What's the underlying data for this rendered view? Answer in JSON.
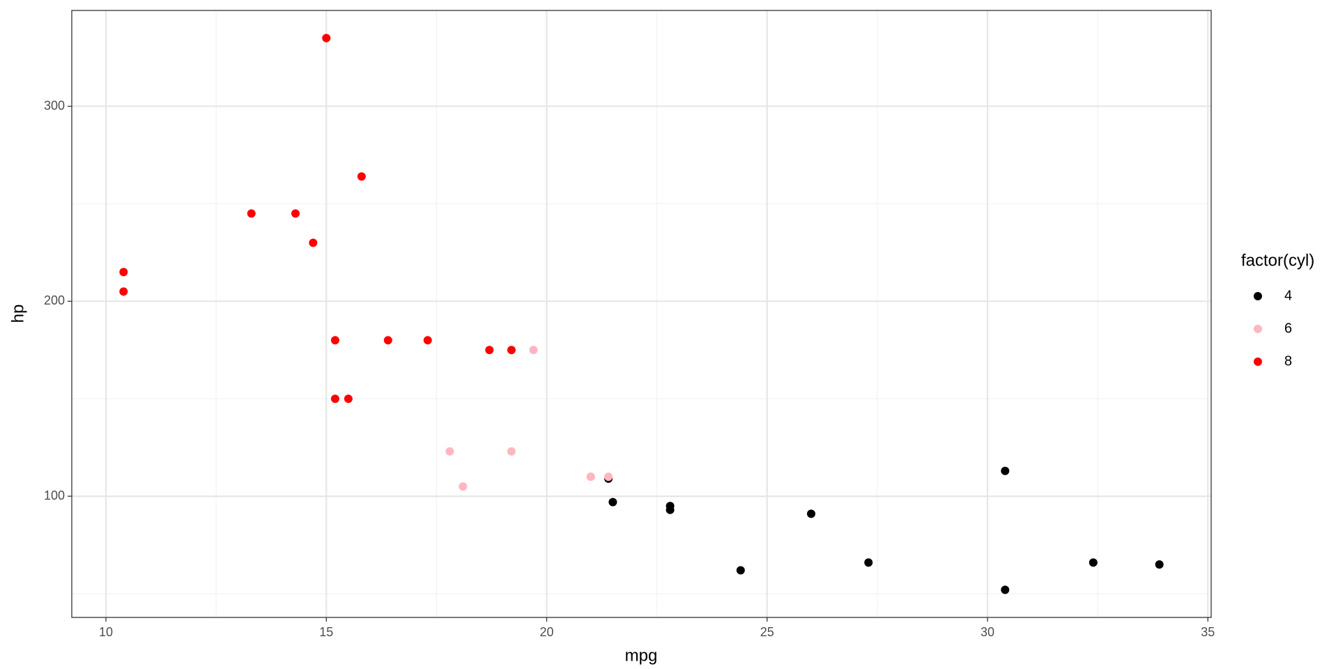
{
  "chart_data": {
    "type": "scatter",
    "x_label": "mpg",
    "y_label": "hp",
    "legend_title": "factor(cyl)",
    "legend_position": "right",
    "xlim": [
      9.225,
      35.075
    ],
    "ylim": [
      37.85,
      349.15
    ],
    "xticks": [
      10,
      15,
      20,
      25,
      30,
      35
    ],
    "yticks": [
      100,
      200,
      300
    ],
    "xminor": [
      12.5,
      17.5,
      22.5,
      27.5,
      32.5
    ],
    "yminor": [
      50,
      150,
      250
    ],
    "grid": true,
    "series": [
      {
        "name": "4",
        "color": "#000000",
        "x": [
          22.8,
          24.4,
          22.8,
          32.4,
          30.4,
          33.9,
          21.5,
          27.3,
          26.0,
          30.4,
          21.4
        ],
        "values": [
          93,
          62,
          95,
          66,
          52,
          65,
          97,
          66,
          91,
          113,
          109
        ]
      },
      {
        "name": "6",
        "color": "#ffb6c1",
        "x": [
          21.0,
          21.0,
          21.4,
          18.1,
          19.2,
          17.8,
          19.7
        ],
        "values": [
          110,
          110,
          110,
          105,
          123,
          123,
          175
        ]
      },
      {
        "name": "8",
        "color": "#ff0000",
        "x": [
          18.7,
          14.3,
          16.4,
          17.3,
          15.2,
          10.4,
          10.4,
          14.7,
          15.5,
          15.2,
          13.3,
          19.2,
          15.8,
          15.0
        ],
        "values": [
          175,
          245,
          180,
          180,
          180,
          205,
          215,
          230,
          150,
          150,
          245,
          175,
          264,
          335
        ]
      }
    ]
  }
}
